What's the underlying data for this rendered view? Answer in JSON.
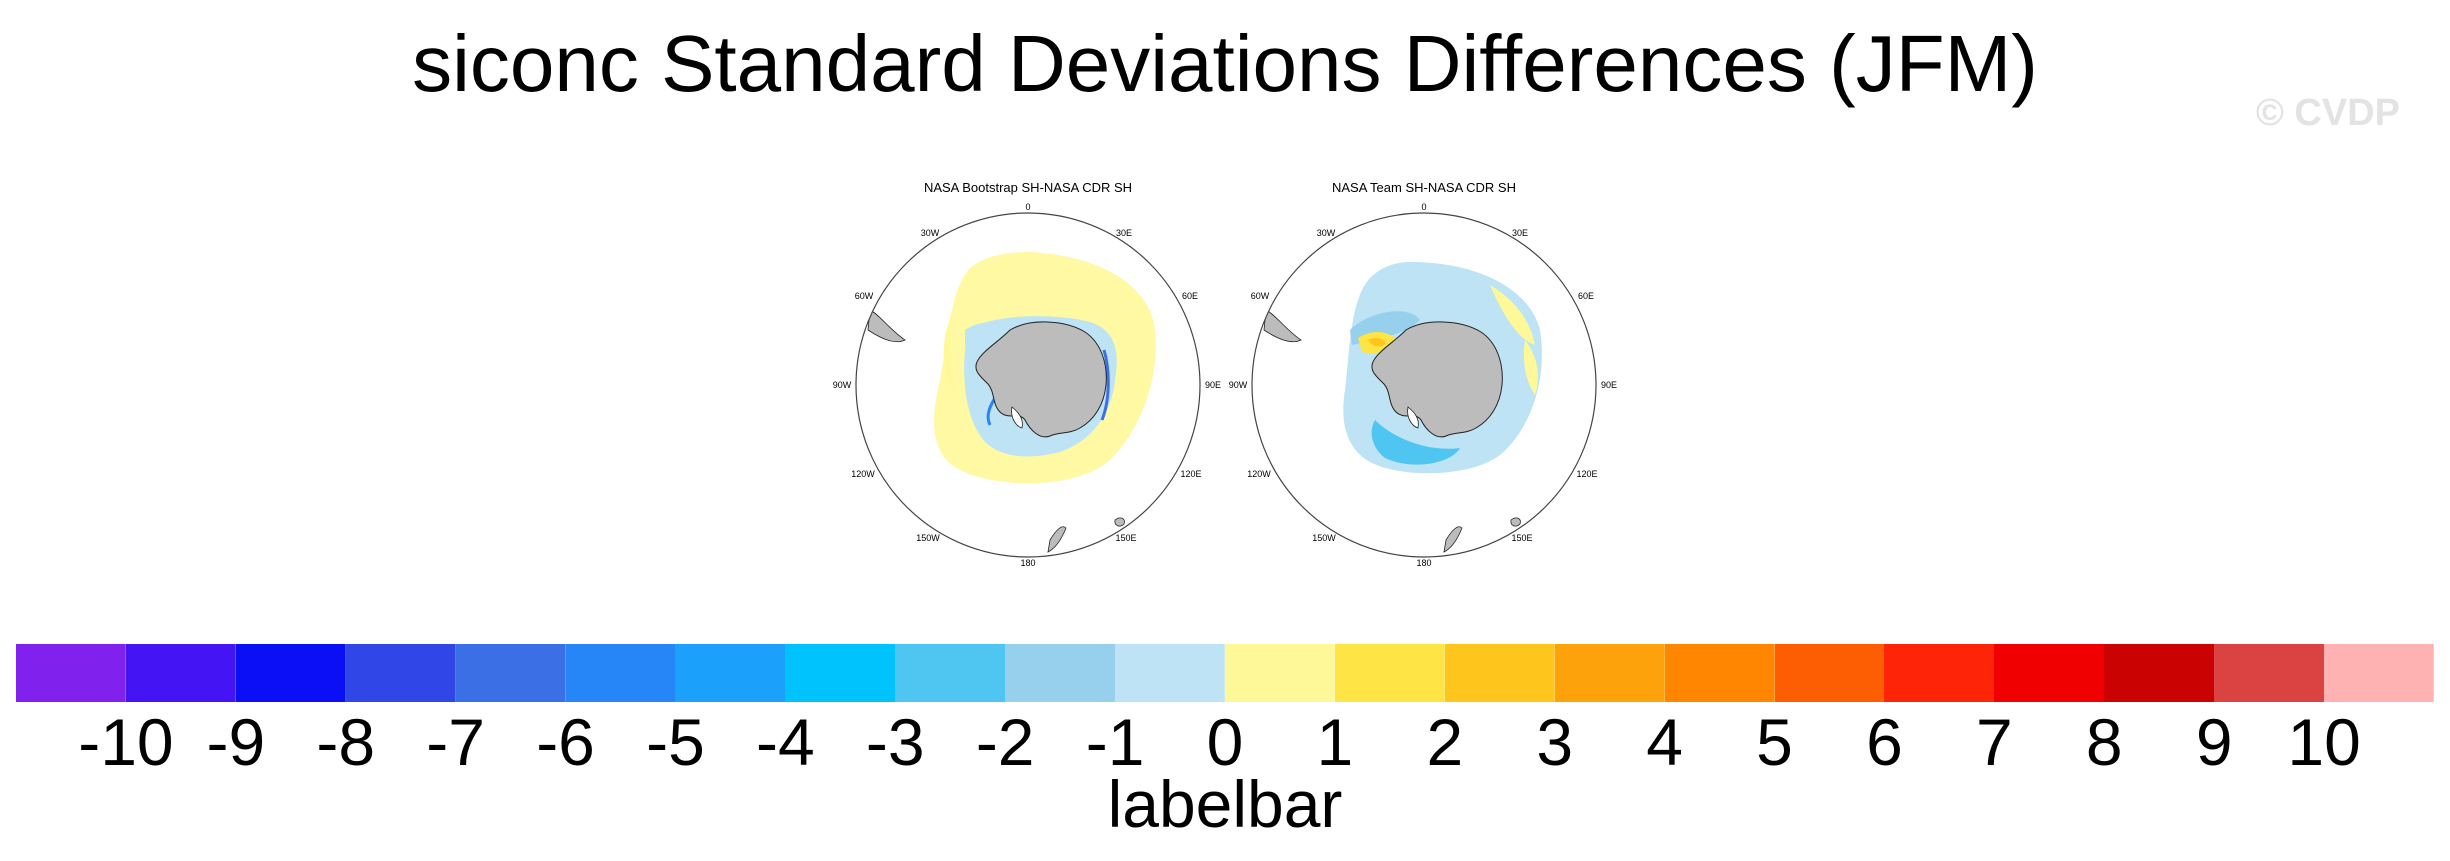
{
  "title": "siconc Standard Deviations Differences (JFM)",
  "watermark": "© CVDP",
  "panels": [
    {
      "title": "NASA Bootstrap SH-NASA CDR SH",
      "lon_labels": [
        "0",
        "30E",
        "60E",
        "90E",
        "120E",
        "150E",
        "180",
        "150W",
        "120W",
        "90W",
        "60W",
        "30W"
      ]
    },
    {
      "title": "NASA Team SH-NASA CDR SH",
      "lon_labels": [
        "0",
        "30E",
        "60E",
        "90E",
        "120E",
        "150E",
        "180",
        "150W",
        "120W",
        "90W",
        "60W",
        "30W"
      ]
    }
  ],
  "labelbar": {
    "title": "labelbar",
    "ticks": [
      "-10",
      "-9",
      "-8",
      "-7",
      "-6",
      "-5",
      "-4",
      "-3",
      "-2",
      "-1",
      "0",
      "1",
      "2",
      "3",
      "4",
      "5",
      "6",
      "7",
      "8",
      "9",
      "10"
    ],
    "colors": [
      "#8121ee",
      "#4514f5",
      "#0b0ff5",
      "#3146e6",
      "#3b6fe6",
      "#2686f8",
      "#1ba1fb",
      "#00c2fd",
      "#4fc6f2",
      "#96d0ec",
      "#bde3f5",
      "#fff899",
      "#fee444",
      "#fec51d",
      "#fea20b",
      "#fe8600",
      "#fe5e03",
      "#fe2408",
      "#f00000",
      "#cb0202",
      "#db4242",
      "#ffb2b2"
    ]
  },
  "colors": {
    "land": "#bcbcbc",
    "ocean": "#ffffff",
    "positive_small": "#fff899",
    "negative_small": "#bde3f5"
  }
}
